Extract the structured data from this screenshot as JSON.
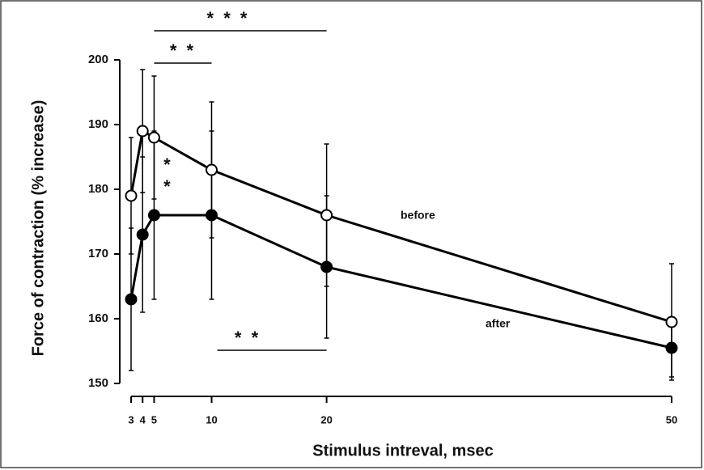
{
  "chart_data": {
    "type": "line",
    "x_label": "Stimulus intreval, msec",
    "y_label": "Force of contraction (% increase)",
    "x": [
      3,
      4,
      5,
      10,
      20,
      50
    ],
    "series": [
      {
        "name": "before",
        "color": "#000000",
        "marker_fill": "#ffffff",
        "values": [
          179,
          189,
          188,
          183,
          176,
          159.5
        ],
        "errors": [
          9,
          9.5,
          9.5,
          10.5,
          11,
          9
        ]
      },
      {
        "name": "after",
        "color": "#000000",
        "marker_fill": "#000000",
        "values": [
          163,
          173,
          176,
          176,
          168,
          155.5
        ],
        "errors": [
          11,
          12,
          13,
          13,
          11,
          4.5
        ]
      }
    ],
    "xlim": [
      3,
      50
    ],
    "xticks": [
      3,
      4,
      5,
      10,
      20,
      50
    ],
    "ylim": [
      150,
      200
    ],
    "yticks": [
      150,
      160,
      170,
      180,
      190,
      200
    ],
    "brackets": [
      {
        "label": "* * *",
        "from": 5,
        "to": 20,
        "level": "top"
      },
      {
        "label": "* *",
        "from": 5,
        "to": 10,
        "level": "upper"
      },
      {
        "label": "* *",
        "from": 10,
        "to": 20,
        "level": "bottom"
      }
    ],
    "point_annotation": {
      "label": "*",
      "x": 5
    }
  }
}
